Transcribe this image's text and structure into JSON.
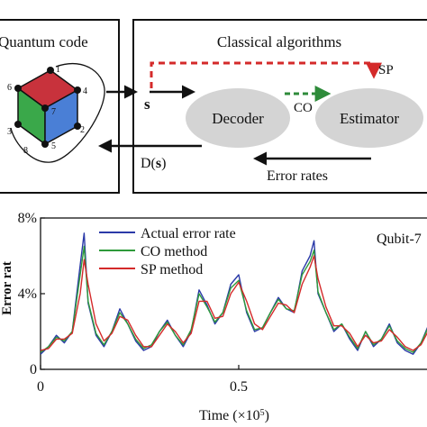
{
  "diagram": {
    "left_box_title": "Quantum code",
    "right_box_title": "Classical algorithms",
    "cube_vertex_labels": [
      "1",
      "2",
      "3",
      "4",
      "5",
      "6",
      "7",
      "8"
    ],
    "syndrome_label": "s",
    "decoder_label": "Decoder",
    "estimator_label": "Estimator",
    "co_label": "CO",
    "sp_label": "SP",
    "decoder_output_label_prefix": "D(",
    "decoder_output_label_var": "s",
    "decoder_output_label_suffix": ")",
    "error_rates_label": "Error rates",
    "colors": {
      "cube_top": "#c8323c",
      "cube_left": "#3aa84a",
      "cube_right": "#4a7fd6",
      "sp_arrow": "#d42a2a",
      "co_arrow": "#2e8b3a",
      "ellipse": "#d4d4d4"
    }
  },
  "chart_data": {
    "type": "line",
    "title": "",
    "corner_label": "Qubit-7",
    "ylabel": "Error rat",
    "xlabel_prefix": "Time (×10",
    "xlabel_sup": "5",
    "xlabel_suffix": ")",
    "xlim": [
      0,
      1
    ],
    "ylim": [
      0,
      0.08
    ],
    "x_ticks": [
      0,
      0.5
    ],
    "x_tick_labels": [
      "0",
      "0.5"
    ],
    "y_ticks": [
      0,
      0.04,
      0.08
    ],
    "y_tick_labels": [
      "0",
      "4%",
      "8%"
    ],
    "legend_position": "top-left",
    "legend": [
      "Actual error rate",
      "CO method",
      "SP method"
    ],
    "series": [
      {
        "name": "Actual error rate",
        "color": "#2b3aa8",
        "x": [
          0,
          0.02,
          0.04,
          0.06,
          0.08,
          0.1,
          0.11,
          0.12,
          0.14,
          0.16,
          0.18,
          0.2,
          0.22,
          0.24,
          0.26,
          0.28,
          0.3,
          0.32,
          0.34,
          0.36,
          0.38,
          0.4,
          0.42,
          0.44,
          0.46,
          0.48,
          0.5,
          0.52,
          0.54,
          0.56,
          0.58,
          0.6,
          0.62,
          0.64,
          0.66,
          0.68,
          0.69,
          0.7,
          0.72,
          0.74,
          0.76,
          0.78,
          0.8,
          0.82,
          0.84,
          0.86,
          0.88,
          0.9,
          0.92,
          0.94,
          0.96,
          0.98,
          1.0
        ],
        "y": [
          0.008,
          0.012,
          0.018,
          0.014,
          0.02,
          0.055,
          0.072,
          0.035,
          0.018,
          0.012,
          0.02,
          0.032,
          0.024,
          0.015,
          0.01,
          0.012,
          0.02,
          0.026,
          0.018,
          0.012,
          0.02,
          0.042,
          0.034,
          0.024,
          0.03,
          0.045,
          0.05,
          0.03,
          0.02,
          0.022,
          0.03,
          0.038,
          0.032,
          0.03,
          0.052,
          0.06,
          0.068,
          0.04,
          0.03,
          0.02,
          0.024,
          0.016,
          0.01,
          0.02,
          0.012,
          0.016,
          0.024,
          0.014,
          0.01,
          0.008,
          0.014,
          0.024,
          0.018
        ]
      },
      {
        "name": "CO method",
        "color": "#2e9a3a",
        "x": [
          0,
          0.02,
          0.04,
          0.06,
          0.08,
          0.1,
          0.11,
          0.12,
          0.14,
          0.16,
          0.18,
          0.2,
          0.22,
          0.24,
          0.26,
          0.28,
          0.3,
          0.32,
          0.34,
          0.36,
          0.38,
          0.4,
          0.42,
          0.44,
          0.46,
          0.48,
          0.5,
          0.52,
          0.54,
          0.56,
          0.58,
          0.6,
          0.62,
          0.64,
          0.66,
          0.68,
          0.69,
          0.7,
          0.72,
          0.74,
          0.76,
          0.78,
          0.8,
          0.82,
          0.84,
          0.86,
          0.88,
          0.9,
          0.92,
          0.94,
          0.96,
          0.98,
          1.0
        ],
        "y": [
          0.009,
          0.012,
          0.017,
          0.015,
          0.02,
          0.05,
          0.065,
          0.036,
          0.019,
          0.013,
          0.02,
          0.03,
          0.024,
          0.016,
          0.011,
          0.013,
          0.02,
          0.025,
          0.018,
          0.013,
          0.021,
          0.04,
          0.033,
          0.025,
          0.03,
          0.043,
          0.047,
          0.031,
          0.021,
          0.022,
          0.03,
          0.037,
          0.032,
          0.031,
          0.05,
          0.057,
          0.063,
          0.041,
          0.03,
          0.021,
          0.024,
          0.017,
          0.011,
          0.02,
          0.013,
          0.016,
          0.023,
          0.015,
          0.011,
          0.009,
          0.014,
          0.023,
          0.018
        ]
      },
      {
        "name": "SP method",
        "color": "#d42a2a",
        "x": [
          0,
          0.02,
          0.04,
          0.06,
          0.08,
          0.1,
          0.11,
          0.12,
          0.14,
          0.16,
          0.18,
          0.2,
          0.22,
          0.24,
          0.26,
          0.28,
          0.3,
          0.32,
          0.34,
          0.36,
          0.38,
          0.4,
          0.42,
          0.44,
          0.46,
          0.48,
          0.5,
          0.52,
          0.54,
          0.56,
          0.58,
          0.6,
          0.62,
          0.64,
          0.66,
          0.68,
          0.69,
          0.7,
          0.72,
          0.74,
          0.76,
          0.78,
          0.8,
          0.82,
          0.84,
          0.86,
          0.88,
          0.9,
          0.92,
          0.94,
          0.96,
          0.98,
          1.0
        ],
        "y": [
          0.01,
          0.011,
          0.016,
          0.016,
          0.019,
          0.04,
          0.058,
          0.045,
          0.024,
          0.015,
          0.019,
          0.028,
          0.026,
          0.018,
          0.012,
          0.012,
          0.018,
          0.024,
          0.02,
          0.014,
          0.019,
          0.036,
          0.036,
          0.027,
          0.028,
          0.04,
          0.046,
          0.036,
          0.024,
          0.021,
          0.028,
          0.035,
          0.034,
          0.03,
          0.045,
          0.054,
          0.06,
          0.048,
          0.033,
          0.023,
          0.023,
          0.019,
          0.012,
          0.018,
          0.014,
          0.015,
          0.021,
          0.017,
          0.012,
          0.01,
          0.013,
          0.021,
          0.02
        ]
      }
    ]
  }
}
